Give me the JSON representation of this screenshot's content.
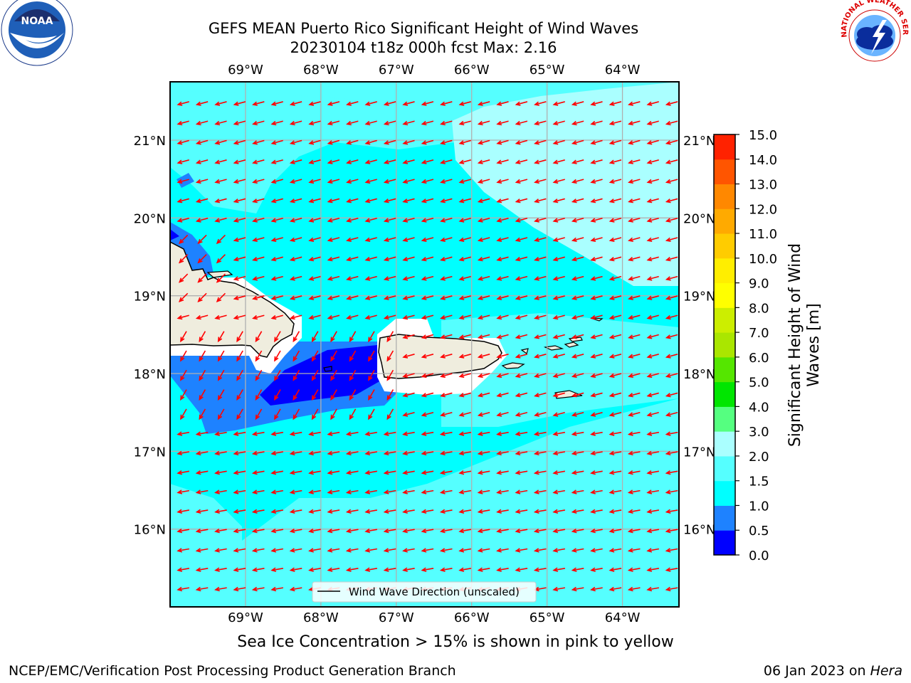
{
  "header": {
    "title_line1": "GEFS MEAN Puerto Rico Significant Height of Wind Waves",
    "title_line2": "20230104 t18z 000h fcst   Max: 2.16"
  },
  "logos": {
    "left": "NOAA",
    "right": "NATIONAL WEATHER SERVICE"
  },
  "map": {
    "lon_labels": [
      "69°W",
      "68°W",
      "67°W",
      "66°W",
      "65°W",
      "64°W"
    ],
    "lat_labels": [
      "21°N",
      "20°N",
      "19°N",
      "18°N",
      "17°N",
      "16°N"
    ],
    "lon_range": [
      -70.0,
      -63.25
    ],
    "lat_range": [
      15.0,
      21.75
    ],
    "legend_label": "Wind Wave Direction (unscaled)",
    "arrow_color": "#ff0000",
    "land_color": "#efedde"
  },
  "colorbar": {
    "title_line1": "Significant Height of Wind",
    "title_line2": "Waves [m]",
    "levels": [
      "0.0",
      "0.5",
      "1.0",
      "1.5",
      "2.0",
      "3.0",
      "4.0",
      "5.0",
      "6.0",
      "7.0",
      "8.0",
      "9.0",
      "10.0",
      "11.0",
      "12.0",
      "13.0",
      "14.0",
      "15.0"
    ],
    "colors": [
      "#0000ff",
      "#1e82ff",
      "#00ffff",
      "#55ffff",
      "#aaffff",
      "#55ff80",
      "#00e600",
      "#55e600",
      "#aae600",
      "#ccee00",
      "#ffff00",
      "#ffee00",
      "#ffcc00",
      "#ffaa00",
      "#ff8800",
      "#ff5500",
      "#ff2200"
    ]
  },
  "footer": {
    "caption": "Sea Ice Concentration > 15% is shown in pink to yellow",
    "left": "NCEP/EMC/Verification Post Processing Product Generation Branch",
    "right_prefix": "06 Jan 2023 on ",
    "right_host": "Hera"
  }
}
